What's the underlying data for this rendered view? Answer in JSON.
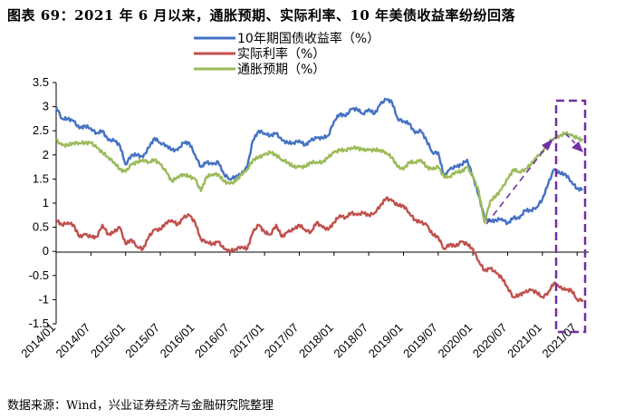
{
  "title": "图表 69：2021 年 6 月以来，通胀预期、实际利率、10 年美债收益率纷纷回落",
  "source": "数据来源：Wind，兴业证券经济与金融研究院整理",
  "chart_data": {
    "type": "line",
    "title": "",
    "xlabel": "",
    "ylabel": "",
    "x_ticks": [
      "2014/01",
      "2014/07",
      "2015/01",
      "2015/07",
      "2016/01",
      "2016/07",
      "2017/01",
      "2017/07",
      "2018/01",
      "2018/07",
      "2019/01",
      "2019/07",
      "2020/01",
      "2020/07",
      "2021/01",
      "2021/07"
    ],
    "y_ticks": [
      "3.5",
      "3",
      "2.5",
      "2",
      "1.5",
      "1",
      "0.5",
      "0",
      "-0.5",
      "-1",
      "-1.5"
    ],
    "ylim": [
      -1.5,
      3.5
    ],
    "xlim": [
      "2014/01",
      "2021/09"
    ],
    "grid": false,
    "legend_position": "top-center",
    "series": [
      {
        "name": "10年期国债收益率（%）",
        "color": "#4472C4",
        "points": [
          [
            "2014/01",
            3.0
          ],
          [
            "2014/02",
            2.75
          ],
          [
            "2014/03",
            2.75
          ],
          [
            "2014/04",
            2.7
          ],
          [
            "2014/05",
            2.55
          ],
          [
            "2014/06",
            2.6
          ],
          [
            "2014/07",
            2.55
          ],
          [
            "2014/08",
            2.45
          ],
          [
            "2014/09",
            2.5
          ],
          [
            "2014/10",
            2.3
          ],
          [
            "2014/11",
            2.3
          ],
          [
            "2014/12",
            2.2
          ],
          [
            "2015/01",
            1.8
          ],
          [
            "2015/02",
            2.0
          ],
          [
            "2015/03",
            2.0
          ],
          [
            "2015/04",
            1.95
          ],
          [
            "2015/05",
            2.15
          ],
          [
            "2015/06",
            2.35
          ],
          [
            "2015/07",
            2.25
          ],
          [
            "2015/08",
            2.2
          ],
          [
            "2015/09",
            2.1
          ],
          [
            "2015/10",
            2.1
          ],
          [
            "2015/11",
            2.25
          ],
          [
            "2015/12",
            2.25
          ],
          [
            "2016/01",
            2.0
          ],
          [
            "2016/02",
            1.75
          ],
          [
            "2016/03",
            1.85
          ],
          [
            "2016/04",
            1.8
          ],
          [
            "2016/05",
            1.85
          ],
          [
            "2016/06",
            1.6
          ],
          [
            "2016/07",
            1.5
          ],
          [
            "2016/08",
            1.55
          ],
          [
            "2016/09",
            1.6
          ],
          [
            "2016/10",
            1.75
          ],
          [
            "2016/11",
            2.3
          ],
          [
            "2016/12",
            2.5
          ],
          [
            "2017/01",
            2.45
          ],
          [
            "2017/02",
            2.4
          ],
          [
            "2017/03",
            2.45
          ],
          [
            "2017/04",
            2.3
          ],
          [
            "2017/05",
            2.25
          ],
          [
            "2017/06",
            2.25
          ],
          [
            "2017/07",
            2.3
          ],
          [
            "2017/08",
            2.2
          ],
          [
            "2017/09",
            2.3
          ],
          [
            "2017/10",
            2.35
          ],
          [
            "2017/11",
            2.35
          ],
          [
            "2017/12",
            2.4
          ],
          [
            "2018/01",
            2.7
          ],
          [
            "2018/02",
            2.85
          ],
          [
            "2018/03",
            2.8
          ],
          [
            "2018/04",
            2.95
          ],
          [
            "2018/05",
            2.95
          ],
          [
            "2018/06",
            2.85
          ],
          [
            "2018/07",
            2.95
          ],
          [
            "2018/08",
            2.85
          ],
          [
            "2018/09",
            3.05
          ],
          [
            "2018/10",
            3.15
          ],
          [
            "2018/11",
            3.1
          ],
          [
            "2018/12",
            2.75
          ],
          [
            "2019/01",
            2.7
          ],
          [
            "2019/02",
            2.65
          ],
          [
            "2019/03",
            2.45
          ],
          [
            "2019/04",
            2.5
          ],
          [
            "2019/05",
            2.3
          ],
          [
            "2019/06",
            2.05
          ],
          [
            "2019/07",
            2.05
          ],
          [
            "2019/08",
            1.55
          ],
          [
            "2019/09",
            1.7
          ],
          [
            "2019/10",
            1.75
          ],
          [
            "2019/11",
            1.8
          ],
          [
            "2019/12",
            1.9
          ],
          [
            "2020/01",
            1.55
          ],
          [
            "2020/02",
            1.15
          ],
          [
            "2020/03",
            0.7
          ],
          [
            "2020/04",
            0.62
          ],
          [
            "2020/05",
            0.65
          ],
          [
            "2020/06",
            0.68
          ],
          [
            "2020/07",
            0.58
          ],
          [
            "2020/08",
            0.7
          ],
          [
            "2020/09",
            0.68
          ],
          [
            "2020/10",
            0.85
          ],
          [
            "2020/11",
            0.85
          ],
          [
            "2020/12",
            0.92
          ],
          [
            "2021/01",
            1.08
          ],
          [
            "2021/02",
            1.4
          ],
          [
            "2021/03",
            1.7
          ],
          [
            "2021/04",
            1.62
          ],
          [
            "2021/05",
            1.6
          ],
          [
            "2021/06",
            1.45
          ],
          [
            "2021/07",
            1.3
          ],
          [
            "2021/08",
            1.28
          ]
        ]
      },
      {
        "name": "实际利率（%）",
        "color": "#C0504D",
        "points": [
          [
            "2014/01",
            0.65
          ],
          [
            "2014/02",
            0.55
          ],
          [
            "2014/03",
            0.6
          ],
          [
            "2014/04",
            0.55
          ],
          [
            "2014/05",
            0.3
          ],
          [
            "2014/06",
            0.35
          ],
          [
            "2014/07",
            0.3
          ],
          [
            "2014/08",
            0.3
          ],
          [
            "2014/09",
            0.55
          ],
          [
            "2014/10",
            0.35
          ],
          [
            "2014/11",
            0.4
          ],
          [
            "2014/12",
            0.5
          ],
          [
            "2015/01",
            0.15
          ],
          [
            "2015/02",
            0.25
          ],
          [
            "2015/03",
            0.1
          ],
          [
            "2015/04",
            0.05
          ],
          [
            "2015/05",
            0.3
          ],
          [
            "2015/06",
            0.45
          ],
          [
            "2015/07",
            0.45
          ],
          [
            "2015/08",
            0.6
          ],
          [
            "2015/09",
            0.65
          ],
          [
            "2015/10",
            0.55
          ],
          [
            "2015/11",
            0.7
          ],
          [
            "2015/12",
            0.75
          ],
          [
            "2016/01",
            0.6
          ],
          [
            "2016/02",
            0.25
          ],
          [
            "2016/03",
            0.2
          ],
          [
            "2016/04",
            0.15
          ],
          [
            "2016/05",
            0.2
          ],
          [
            "2016/06",
            0.05
          ],
          [
            "2016/07",
            0.0
          ],
          [
            "2016/08",
            0.05
          ],
          [
            "2016/09",
            0.1
          ],
          [
            "2016/10",
            0.05
          ],
          [
            "2016/11",
            0.4
          ],
          [
            "2016/12",
            0.55
          ],
          [
            "2017/01",
            0.4
          ],
          [
            "2017/02",
            0.35
          ],
          [
            "2017/03",
            0.55
          ],
          [
            "2017/04",
            0.3
          ],
          [
            "2017/05",
            0.4
          ],
          [
            "2017/06",
            0.45
          ],
          [
            "2017/07",
            0.55
          ],
          [
            "2017/08",
            0.45
          ],
          [
            "2017/09",
            0.4
          ],
          [
            "2017/10",
            0.6
          ],
          [
            "2017/11",
            0.5
          ],
          [
            "2017/12",
            0.45
          ],
          [
            "2018/01",
            0.6
          ],
          [
            "2018/02",
            0.75
          ],
          [
            "2018/03",
            0.7
          ],
          [
            "2018/04",
            0.8
          ],
          [
            "2018/05",
            0.75
          ],
          [
            "2018/06",
            0.8
          ],
          [
            "2018/07",
            0.75
          ],
          [
            "2018/08",
            0.8
          ],
          [
            "2018/09",
            0.95
          ],
          [
            "2018/10",
            1.1
          ],
          [
            "2018/11",
            1.05
          ],
          [
            "2018/12",
            0.95
          ],
          [
            "2019/01",
            0.95
          ],
          [
            "2019/02",
            0.8
          ],
          [
            "2019/03",
            0.65
          ],
          [
            "2019/04",
            0.6
          ],
          [
            "2019/05",
            0.55
          ],
          [
            "2019/06",
            0.35
          ],
          [
            "2019/07",
            0.3
          ],
          [
            "2019/08",
            0.05
          ],
          [
            "2019/09",
            0.15
          ],
          [
            "2019/10",
            0.1
          ],
          [
            "2019/11",
            0.2
          ],
          [
            "2019/12",
            0.15
          ],
          [
            "2020/01",
            0.05
          ],
          [
            "2020/02",
            -0.2
          ],
          [
            "2020/03",
            -0.4
          ],
          [
            "2020/04",
            -0.35
          ],
          [
            "2020/05",
            -0.45
          ],
          [
            "2020/06",
            -0.55
          ],
          [
            "2020/07",
            -0.75
          ],
          [
            "2020/08",
            -0.95
          ],
          [
            "2020/09",
            -0.9
          ],
          [
            "2020/10",
            -0.85
          ],
          [
            "2020/11",
            -0.8
          ],
          [
            "2020/12",
            -0.85
          ],
          [
            "2021/01",
            -0.95
          ],
          [
            "2021/02",
            -0.85
          ],
          [
            "2021/03",
            -0.65
          ],
          [
            "2021/04",
            -0.75
          ],
          [
            "2021/05",
            -0.8
          ],
          [
            "2021/06",
            -0.8
          ],
          [
            "2021/07",
            -1.0
          ],
          [
            "2021/08",
            -1.0
          ]
        ]
      },
      {
        "name": "通胀预期（%）",
        "color": "#9BBB59",
        "points": [
          [
            "2014/01",
            2.3
          ],
          [
            "2014/02",
            2.2
          ],
          [
            "2014/03",
            2.2
          ],
          [
            "2014/04",
            2.25
          ],
          [
            "2014/05",
            2.25
          ],
          [
            "2014/06",
            2.25
          ],
          [
            "2014/07",
            2.25
          ],
          [
            "2014/08",
            2.15
          ],
          [
            "2014/09",
            2.05
          ],
          [
            "2014/10",
            1.95
          ],
          [
            "2014/11",
            1.85
          ],
          [
            "2014/12",
            1.7
          ],
          [
            "2015/01",
            1.65
          ],
          [
            "2015/02",
            1.8
          ],
          [
            "2015/03",
            1.85
          ],
          [
            "2015/04",
            1.9
          ],
          [
            "2015/05",
            1.85
          ],
          [
            "2015/06",
            1.9
          ],
          [
            "2015/07",
            1.8
          ],
          [
            "2015/08",
            1.65
          ],
          [
            "2015/09",
            1.45
          ],
          [
            "2015/10",
            1.55
          ],
          [
            "2015/11",
            1.6
          ],
          [
            "2015/12",
            1.55
          ],
          [
            "2016/01",
            1.5
          ],
          [
            "2016/02",
            1.25
          ],
          [
            "2016/03",
            1.55
          ],
          [
            "2016/04",
            1.6
          ],
          [
            "2016/05",
            1.6
          ],
          [
            "2016/06",
            1.45
          ],
          [
            "2016/07",
            1.4
          ],
          [
            "2016/08",
            1.45
          ],
          [
            "2016/09",
            1.6
          ],
          [
            "2016/10",
            1.7
          ],
          [
            "2016/11",
            1.9
          ],
          [
            "2016/12",
            1.95
          ],
          [
            "2017/01",
            2.0
          ],
          [
            "2017/02",
            2.05
          ],
          [
            "2017/03",
            2.0
          ],
          [
            "2017/04",
            1.9
          ],
          [
            "2017/05",
            1.85
          ],
          [
            "2017/06",
            1.75
          ],
          [
            "2017/07",
            1.75
          ],
          [
            "2017/08",
            1.75
          ],
          [
            "2017/09",
            1.85
          ],
          [
            "2017/10",
            1.85
          ],
          [
            "2017/11",
            1.85
          ],
          [
            "2017/12",
            1.95
          ],
          [
            "2018/01",
            2.05
          ],
          [
            "2018/02",
            2.1
          ],
          [
            "2018/03",
            2.1
          ],
          [
            "2018/04",
            2.15
          ],
          [
            "2018/05",
            2.15
          ],
          [
            "2018/06",
            2.1
          ],
          [
            "2018/07",
            2.1
          ],
          [
            "2018/08",
            2.1
          ],
          [
            "2018/09",
            2.1
          ],
          [
            "2018/10",
            2.05
          ],
          [
            "2018/11",
            1.95
          ],
          [
            "2018/12",
            1.75
          ],
          [
            "2019/01",
            1.7
          ],
          [
            "2019/02",
            1.85
          ],
          [
            "2019/03",
            1.85
          ],
          [
            "2019/04",
            1.9
          ],
          [
            "2019/05",
            1.75
          ],
          [
            "2019/06",
            1.7
          ],
          [
            "2019/07",
            1.75
          ],
          [
            "2019/08",
            1.55
          ],
          [
            "2019/09",
            1.55
          ],
          [
            "2019/10",
            1.65
          ],
          [
            "2019/11",
            1.65
          ],
          [
            "2019/12",
            1.75
          ],
          [
            "2020/01",
            1.55
          ],
          [
            "2020/02",
            1.25
          ],
          [
            "2020/03",
            0.6
          ],
          [
            "2020/04",
            1.05
          ],
          [
            "2020/05",
            1.15
          ],
          [
            "2020/06",
            1.3
          ],
          [
            "2020/07",
            1.5
          ],
          [
            "2020/08",
            1.7
          ],
          [
            "2020/09",
            1.65
          ],
          [
            "2020/10",
            1.7
          ],
          [
            "2020/11",
            1.8
          ],
          [
            "2020/12",
            1.95
          ],
          [
            "2021/01",
            2.05
          ],
          [
            "2021/02",
            2.25
          ],
          [
            "2021/03",
            2.35
          ],
          [
            "2021/04",
            2.4
          ],
          [
            "2021/05",
            2.45
          ],
          [
            "2021/06",
            2.4
          ],
          [
            "2021/07",
            2.35
          ],
          [
            "2021/08",
            2.3
          ]
        ]
      }
    ]
  }
}
